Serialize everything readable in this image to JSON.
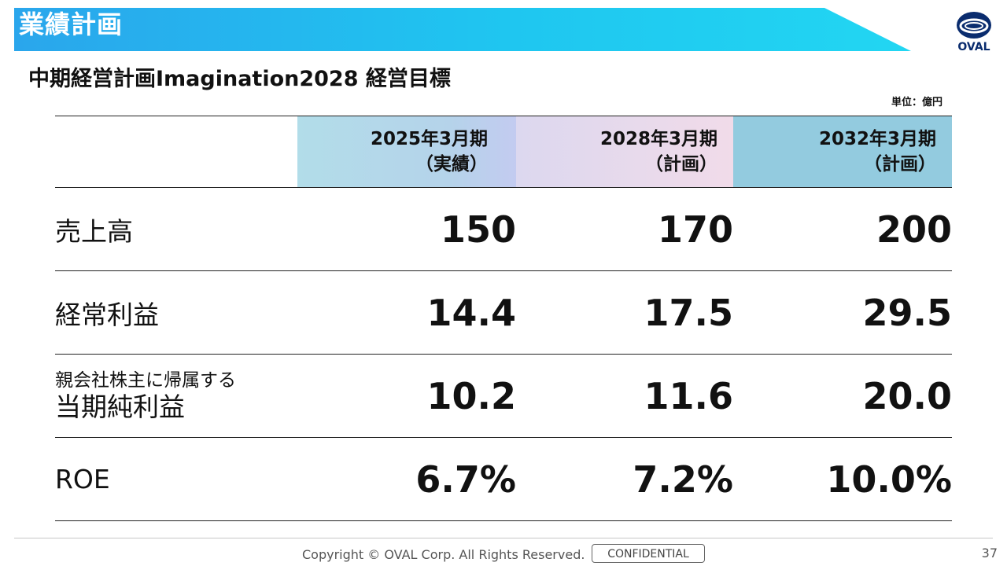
{
  "header": {
    "section_title": "業績計画",
    "logo_text": "OVAL"
  },
  "subtitle": "中期経営計画Imagination2028 経営目標",
  "unit": "単位：億円",
  "table": {
    "columns": [
      {
        "line1": "2025年3月期",
        "line2": "（実績）"
      },
      {
        "line1": "2028年3月期",
        "line2": "（計画）"
      },
      {
        "line1": "2032年3月期",
        "line2": "（計画）"
      }
    ],
    "rows": [
      {
        "label": "売上高",
        "values": [
          "150",
          "170",
          "200"
        ]
      },
      {
        "label": "経常利益",
        "values": [
          "14.4",
          "17.5",
          "29.5"
        ]
      },
      {
        "label_small": "親会社株主に帰属する",
        "label": "当期純利益",
        "values": [
          "10.2",
          "11.6",
          "20.0"
        ]
      },
      {
        "label": "ROE",
        "values": [
          "6.7%",
          "7.2%",
          "10.0%"
        ]
      }
    ]
  },
  "footer": {
    "copyright": "Copyright © OVAL Corp. All Rights Reserved.",
    "confidential": "CONFIDENTIAL",
    "page_number": "37"
  },
  "colors": {
    "banner": "#1fc6f0",
    "logo": "#0a2c6e"
  }
}
